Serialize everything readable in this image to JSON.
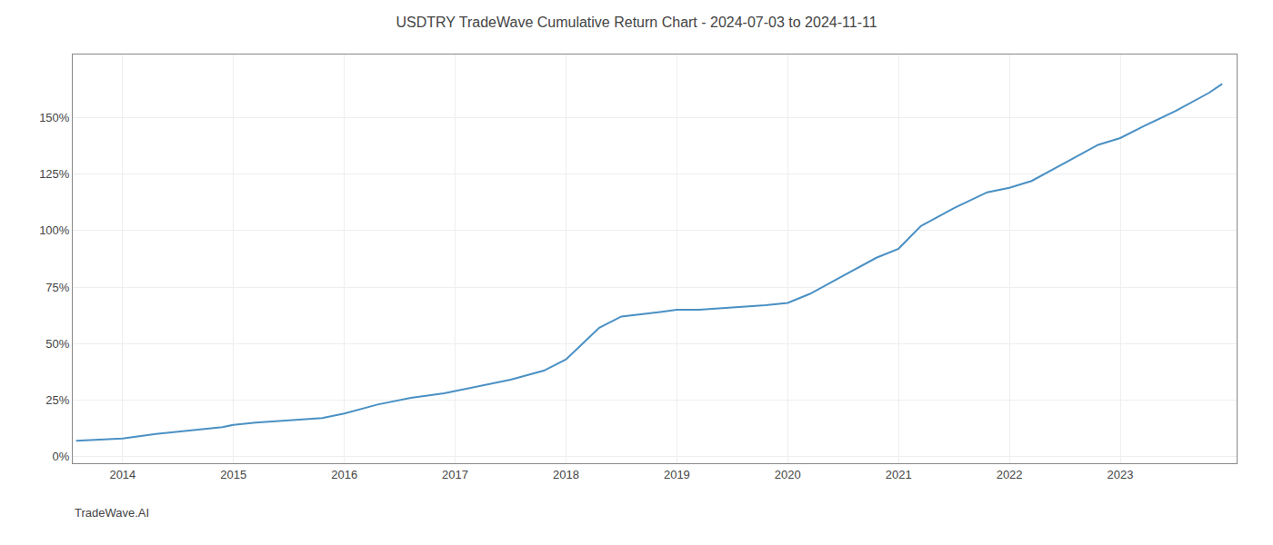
{
  "chart_data": {
    "type": "line",
    "title": "USDTRY TradeWave Cumulative Return Chart - 2024-07-03 to 2024-11-11",
    "annotations": [
      "TradeWave.AI"
    ],
    "x": [
      2013.58,
      2014.0,
      2014.15,
      2014.3,
      2014.5,
      2014.7,
      2014.9,
      2015.0,
      2015.2,
      2015.5,
      2015.8,
      2016.0,
      2016.3,
      2016.6,
      2016.9,
      2017.0,
      2017.2,
      2017.5,
      2017.8,
      2018.0,
      2018.15,
      2018.3,
      2018.5,
      2018.7,
      2018.85,
      2019.0,
      2019.2,
      2019.5,
      2019.8,
      2020.0,
      2020.2,
      2020.5,
      2020.8,
      2021.0,
      2021.2,
      2021.5,
      2021.8,
      2022.0,
      2022.2,
      2022.5,
      2022.8,
      2023.0,
      2023.2,
      2023.5,
      2023.8,
      2023.92
    ],
    "values": [
      7,
      8,
      9,
      10,
      11,
      12,
      13,
      14,
      15,
      16,
      17,
      19,
      23,
      26,
      28,
      29,
      31,
      34,
      38,
      43,
      50,
      57,
      62,
      63,
      64,
      65,
      65,
      66,
      67,
      68,
      72,
      80,
      88,
      92,
      102,
      110,
      117,
      119,
      122,
      130,
      138,
      141,
      146,
      153,
      161,
      165
    ],
    "color": "#4a90c4",
    "xlim": [
      2013.55,
      2024.05
    ],
    "xticks": [
      2014,
      2015,
      2016,
      2017,
      2018,
      2019,
      2020,
      2021,
      2022,
      2023
    ],
    "ylim": [
      -3,
      178
    ],
    "yticks": [
      {
        "value": 0,
        "label": "0%"
      },
      {
        "value": 25,
        "label": "25%"
      },
      {
        "value": 50,
        "label": "50%"
      },
      {
        "value": 75,
        "label": "75%"
      },
      {
        "value": 100,
        "label": "100%"
      },
      {
        "value": 125,
        "label": "125%"
      },
      {
        "value": 150,
        "label": "150%"
      }
    ],
    "grid": true
  }
}
